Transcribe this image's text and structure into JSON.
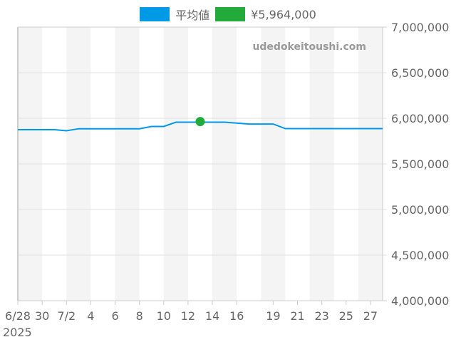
{
  "legend": {
    "series_label": "平均値",
    "series_color": "#0099e6",
    "marker_label": "¥5,964,000",
    "marker_color": "#22aa3a"
  },
  "watermark": "udedokeitoushi.com",
  "chart_data": {
    "type": "line",
    "title": "",
    "xlabel": "",
    "ylabel": "",
    "ylim": [
      4000000,
      7000000
    ],
    "y_ticks": [
      "4,000,000",
      "4,500,000",
      "5,000,000",
      "5,500,000",
      "6,000,000",
      "6,500,000",
      "7,000,000"
    ],
    "x_tick_labels": [
      "6/28",
      "30",
      "7/2",
      "4",
      "6",
      "8",
      "10",
      "12",
      "14",
      "16",
      "19",
      "21",
      "23",
      "25",
      "27"
    ],
    "x_year_label": "2025",
    "grid": true,
    "legend_position": "top",
    "series": [
      {
        "name": "平均値",
        "color": "#0099e6",
        "x": [
          "6/28",
          "6/29",
          "6/30",
          "7/1",
          "7/2",
          "7/3",
          "7/4",
          "7/5",
          "7/6",
          "7/7",
          "7/8",
          "7/9",
          "7/10",
          "7/11",
          "7/12",
          "7/13",
          "7/14",
          "7/15",
          "7/16",
          "7/17",
          "7/18",
          "7/19",
          "7/20",
          "7/21",
          "7/22",
          "7/23",
          "7/24",
          "7/25",
          "7/26",
          "7/27",
          "7/28"
        ],
        "values": [
          5875000,
          5875000,
          5875000,
          5875000,
          5863000,
          5885000,
          5885000,
          5885000,
          5885000,
          5885000,
          5885000,
          5910000,
          5910000,
          5957000,
          5957000,
          5957000,
          5957000,
          5957000,
          5948000,
          5937000,
          5937000,
          5937000,
          5887000,
          5887000,
          5887000,
          5887000,
          5887000,
          5887000,
          5887000,
          5887000,
          5887000
        ]
      }
    ],
    "highlight_point": {
      "x": "7/13",
      "value": 5964000,
      "label": "¥5,964,000",
      "color": "#22aa3a"
    }
  }
}
